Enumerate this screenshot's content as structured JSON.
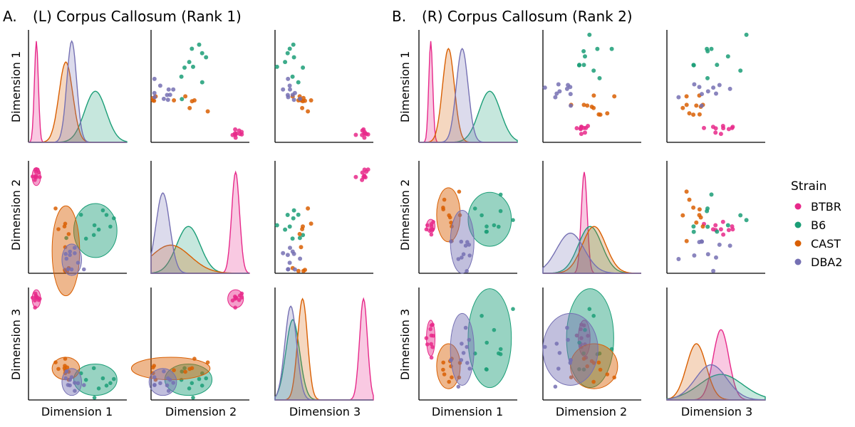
{
  "panels": [
    {
      "letter": "A.",
      "title": "(L) Corpus Callosum (Rank 1)",
      "row_labels": [
        "Dimension 1",
        "Dimension 2",
        "Dimension 3"
      ],
      "col_labels": [
        "Dimension 1",
        "Dimension 2",
        "Dimension 3"
      ]
    },
    {
      "letter": "B.",
      "title": "(R) Corpus Callosum (Rank 2)",
      "row_labels": [
        "Dimension 1",
        "Dimension 2",
        "Dimension 3"
      ],
      "col_labels": [
        "Dimension 1",
        "Dimension 2",
        "Dimension 3"
      ]
    }
  ],
  "legend": {
    "title": "Strain",
    "items": [
      {
        "label": "BTBR",
        "color": "#e7298a"
      },
      {
        "label": "B6",
        "color": "#1b9e77"
      },
      {
        "label": "CAST",
        "color": "#d95f02"
      },
      {
        "label": "DBA2",
        "color": "#7570b3"
      }
    ]
  },
  "chart_data": [
    {
      "type": "scatter",
      "title": "(L) Corpus Callosum (Rank 1)",
      "plot": "pairplot",
      "dimensions": [
        "Dimension 1",
        "Dimension 2",
        "Dimension 3"
      ],
      "axis_range": [
        0,
        1
      ],
      "series": [
        {
          "name": "BTBR",
          "mean": [
            0.08,
            0.86,
            0.9
          ],
          "sd": [
            0.02,
            0.04,
            0.04
          ]
        },
        {
          "name": "B6",
          "mean": [
            0.68,
            0.38,
            0.18
          ],
          "sd": [
            0.11,
            0.12,
            0.07
          ]
        },
        {
          "name": "CAST",
          "mean": [
            0.38,
            0.2,
            0.28
          ],
          "sd": [
            0.07,
            0.2,
            0.05
          ]
        },
        {
          "name": "DBA2",
          "mean": [
            0.44,
            0.12,
            0.16
          ],
          "sd": [
            0.05,
            0.07,
            0.06
          ]
        }
      ]
    },
    {
      "type": "scatter",
      "title": "(R) Corpus Callosum (Rank 2)",
      "plot": "pairplot",
      "dimensions": [
        "Dimension 1",
        "Dimension 2",
        "Dimension 3"
      ],
      "axis_range": [
        0,
        1
      ],
      "series": [
        {
          "name": "BTBR",
          "mean": [
            0.12,
            0.42,
            0.55
          ],
          "sd": [
            0.02,
            0.03,
            0.08
          ]
        },
        {
          "name": "B6",
          "mean": [
            0.72,
            0.48,
            0.55
          ],
          "sd": [
            0.11,
            0.12,
            0.22
          ]
        },
        {
          "name": "CAST",
          "mean": [
            0.3,
            0.52,
            0.3
          ],
          "sd": [
            0.06,
            0.12,
            0.1
          ]
        },
        {
          "name": "DBA2",
          "mean": [
            0.44,
            0.28,
            0.45
          ],
          "sd": [
            0.06,
            0.14,
            0.16
          ]
        }
      ]
    }
  ]
}
